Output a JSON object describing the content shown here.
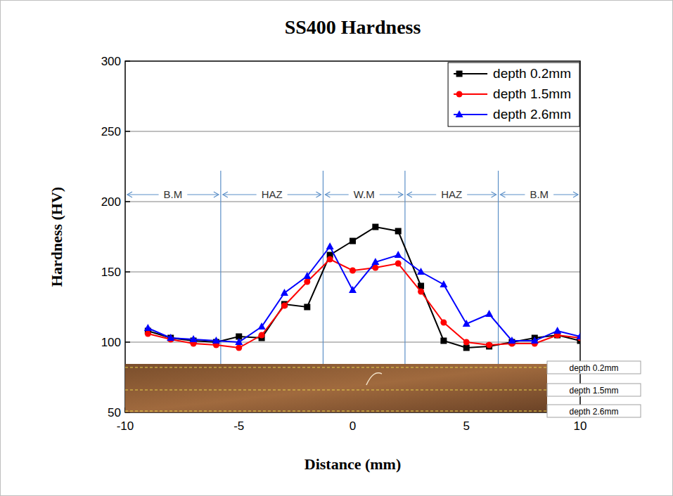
{
  "chart_data": {
    "type": "line",
    "title": "SS400 Hardness",
    "x_label": "Distance (mm)",
    "y_label": "Hardness (HV)",
    "x": [
      -9,
      -8,
      -7,
      -6,
      -5,
      -4,
      -3,
      -2,
      -1,
      0,
      1,
      2,
      3,
      4,
      5,
      6,
      7,
      8,
      9,
      10
    ],
    "xlim": [
      -10,
      10
    ],
    "xticks": [
      -10,
      -5,
      0,
      5,
      10
    ],
    "ylim": [
      50,
      300
    ],
    "yticks": [
      50,
      100,
      150,
      200,
      250,
      300
    ],
    "grid": true,
    "legend": "upper right",
    "series": [
      {
        "name": "depth 0.2mm",
        "color": "#000000",
        "marker": "square",
        "line_style": "solid",
        "values": [
          108,
          103,
          101,
          100,
          104,
          103,
          127,
          125,
          162,
          172,
          182,
          179,
          140,
          101,
          96,
          97,
          100,
          103,
          105,
          101
        ]
      },
      {
        "name": "depth 1.5mm",
        "color": "#ff0000",
        "marker": "circle",
        "line_style": "solid",
        "values": [
          106,
          102,
          99,
          98,
          96,
          105,
          126,
          143,
          159,
          151,
          153,
          156,
          136,
          114,
          100,
          98,
          99,
          99,
          105,
          103
        ]
      },
      {
        "name": "depth 2.6mm",
        "color": "#0000ff",
        "marker": "triangle",
        "line_style": "solid",
        "values": [
          110,
          103,
          102,
          101,
          100,
          111,
          135,
          147,
          168,
          137,
          157,
          162,
          150,
          141,
          113,
          120,
          101,
          101,
          108,
          104
        ]
      }
    ],
    "annotations": [
      {
        "text": "B.M",
        "x_start": -10,
        "x_end": -5.8,
        "y": 205
      },
      {
        "text": "HAZ",
        "x_start": -5.8,
        "x_end": -1.3,
        "y": 205
      },
      {
        "text": "W.M",
        "x_start": -1.3,
        "x_end": 2.3,
        "y": 205
      },
      {
        "text": "HAZ",
        "x_start": 2.3,
        "x_end": 6.4,
        "y": 205
      },
      {
        "text": "B.M",
        "x_start": 6.4,
        "x_end": 10,
        "y": 205
      }
    ],
    "inset_labels": [
      "depth 0.2mm",
      "depth 1.5mm",
      "depth 2.6mm"
    ]
  }
}
